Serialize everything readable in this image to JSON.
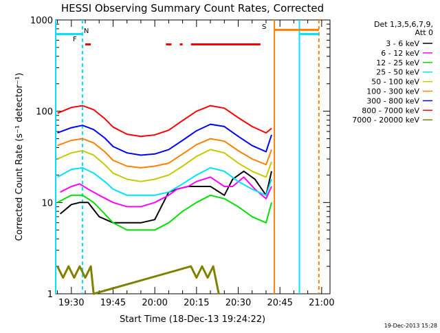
{
  "chart_data": {
    "type": "line",
    "title": "HESSI Observing Summary Count Rates, Corrected",
    "xlabel": "Start Time (18-Dec-13 19:24:22)",
    "ylabel": "Corrected Count Rate (s⁻¹ detector⁻¹)",
    "y_scale": "log",
    "ylim": [
      1,
      1000
    ],
    "xlim": [
      "19:24:22",
      "21:03:00"
    ],
    "x_ticks": [
      "19:30",
      "19:45",
      "20:00",
      "20:15",
      "20:30",
      "20:45",
      "21:00"
    ],
    "y_ticks": [
      "1",
      "10",
      "100",
      "1000"
    ],
    "legend_header": [
      "Det 1,3,5,6,7,9,",
      "Att 0"
    ],
    "legend_position": "right",
    "footer_date": "19-Dec-2013 15:28",
    "grid": false,
    "annotations": [
      {
        "text": "N",
        "x": "19:33",
        "color": "#00e0ff"
      },
      {
        "text": "F",
        "x": "19:33",
        "color": "#ff0000"
      },
      {
        "text": "S",
        "x": "20:41",
        "color": "#ff8000"
      }
    ],
    "flag_bars": [
      {
        "label": "N",
        "color": "#00e0ff",
        "y": 700,
        "ranges": [
          [
            "19:24:22",
            "19:34"
          ],
          [
            "20:52",
            "20:59"
          ]
        ]
      },
      {
        "label": "F",
        "color": "#ff0000",
        "y": 540,
        "ranges": [
          [
            "19:35",
            "19:37"
          ],
          [
            "20:04",
            "20:06"
          ],
          [
            "20:09",
            "20:10"
          ],
          [
            "20:13",
            "20:38"
          ]
        ]
      },
      {
        "label": "S",
        "color": "#ff8000",
        "y": 780,
        "ranges": [
          [
            "20:43",
            "20:59"
          ]
        ]
      }
    ],
    "vertical_lines": [
      {
        "x": "19:24:22",
        "color": "#00e0ff",
        "style": "solid"
      },
      {
        "x": "19:34",
        "color": "#00e0ff",
        "style": "dashed"
      },
      {
        "x": "20:43",
        "color": "#ff8000",
        "style": "solid"
      },
      {
        "x": "20:52",
        "color": "#00e0ff",
        "style": "solid"
      },
      {
        "x": "20:59",
        "color": "#ff8000",
        "style": "dashed"
      }
    ],
    "series": [
      {
        "name": "3 - 6 keV",
        "color": "#000000",
        "x": [
          "19:26",
          "19:30",
          "19:33",
          "19:36",
          "19:40",
          "19:45",
          "19:50",
          "19:55",
          "20:00",
          "20:05",
          "20:08",
          "20:12",
          "20:15",
          "20:20",
          "20:25",
          "20:28",
          "20:32",
          "20:36",
          "20:40",
          "20:42"
        ],
        "y": [
          7.5,
          9.5,
          10,
          10,
          7,
          6,
          6,
          6,
          6.5,
          13,
          14,
          15,
          15,
          15,
          12,
          18,
          22,
          18,
          12,
          22
        ]
      },
      {
        "name": "6 - 12 keV",
        "color": "#ff00ff",
        "x": [
          "19:26",
          "19:30",
          "19:33",
          "19:36",
          "19:40",
          "19:45",
          "19:50",
          "19:55",
          "20:00",
          "20:05",
          "20:08",
          "20:12",
          "20:15",
          "20:20",
          "20:25",
          "20:28",
          "20:32",
          "20:36",
          "20:40",
          "20:42"
        ],
        "y": [
          13,
          15,
          16,
          14,
          12,
          10,
          9,
          9,
          10,
          12,
          14,
          15,
          17,
          19,
          15,
          15,
          19,
          14,
          11,
          15
        ]
      },
      {
        "name": "12 - 25 keV",
        "color": "#00e000",
        "x": [
          "19:25",
          "19:30",
          "19:34",
          "19:38",
          "19:42",
          "19:45",
          "19:50",
          "19:55",
          "20:00",
          "20:05",
          "20:10",
          "20:15",
          "20:20",
          "20:25",
          "20:30",
          "20:35",
          "20:40",
          "20:42"
        ],
        "y": [
          10,
          12,
          12,
          10,
          7.5,
          6,
          5,
          5,
          5,
          6,
          8,
          10,
          12,
          11,
          9,
          7,
          6,
          10
        ]
      },
      {
        "name": "25 - 50 keV",
        "color": "#00e0ff",
        "x": [
          "19:25",
          "19:30",
          "19:34",
          "19:38",
          "19:42",
          "19:45",
          "19:50",
          "19:55",
          "20:00",
          "20:05",
          "20:10",
          "20:15",
          "20:20",
          "20:25",
          "20:30",
          "20:35",
          "20:40",
          "20:42"
        ],
        "y": [
          19,
          23,
          24,
          21,
          17,
          14,
          12,
          12,
          12,
          13,
          16,
          20,
          24,
          22,
          17,
          14,
          12,
          18
        ]
      },
      {
        "name": "50 - 100 keV",
        "color": "#c8c800",
        "x": [
          "19:25",
          "19:30",
          "19:34",
          "19:38",
          "19:42",
          "19:45",
          "19:50",
          "19:55",
          "20:00",
          "20:05",
          "20:10",
          "20:15",
          "20:20",
          "20:25",
          "20:30",
          "20:35",
          "20:40",
          "20:42"
        ],
        "y": [
          30,
          35,
          37,
          33,
          26,
          21,
          18,
          17,
          18,
          20,
          25,
          32,
          38,
          35,
          27,
          22,
          19,
          28
        ]
      },
      {
        "name": "100 - 300 keV",
        "color": "#ff8000",
        "x": [
          "19:25",
          "19:30",
          "19:34",
          "19:38",
          "19:42",
          "19:45",
          "19:50",
          "19:55",
          "20:00",
          "20:05",
          "20:10",
          "20:15",
          "20:20",
          "20:25",
          "20:30",
          "20:35",
          "20:40",
          "20:42"
        ],
        "y": [
          42,
          48,
          50,
          45,
          36,
          29,
          25,
          24,
          25,
          27,
          34,
          43,
          50,
          47,
          37,
          30,
          26,
          38
        ]
      },
      {
        "name": "300 - 800 keV",
        "color": "#0000ff",
        "x": [
          "19:25",
          "19:30",
          "19:34",
          "19:38",
          "19:42",
          "19:45",
          "19:50",
          "19:55",
          "20:00",
          "20:05",
          "20:10",
          "20:15",
          "20:20",
          "20:25",
          "20:30",
          "20:35",
          "20:40",
          "20:42"
        ],
        "y": [
          58,
          66,
          70,
          63,
          51,
          41,
          35,
          33,
          34,
          38,
          48,
          61,
          72,
          68,
          53,
          42,
          36,
          55
        ]
      },
      {
        "name": "800 - 7000 keV",
        "color": "#ff0000",
        "x": [
          "19:25",
          "19:30",
          "19:34",
          "19:38",
          "19:42",
          "19:45",
          "19:50",
          "19:55",
          "20:00",
          "20:05",
          "20:10",
          "20:15",
          "20:20",
          "20:25",
          "20:30",
          "20:35",
          "20:40",
          "20:42"
        ],
        "y": [
          95,
          110,
          115,
          104,
          83,
          67,
          56,
          53,
          55,
          62,
          79,
          100,
          115,
          108,
          85,
          68,
          58,
          65
        ]
      },
      {
        "name": "7000 - 20000 keV",
        "color": "#808000",
        "x": [
          "19:25",
          "19:27",
          "19:29",
          "19:31",
          "19:33",
          "19:35",
          "19:37",
          "19:38",
          "20:13",
          "20:15",
          "20:17",
          "20:19",
          "20:21",
          "20:23"
        ],
        "y": [
          2,
          1.5,
          2,
          1.5,
          2,
          1.5,
          2,
          1,
          2,
          1.5,
          2,
          1.5,
          2,
          1
        ]
      }
    ]
  }
}
